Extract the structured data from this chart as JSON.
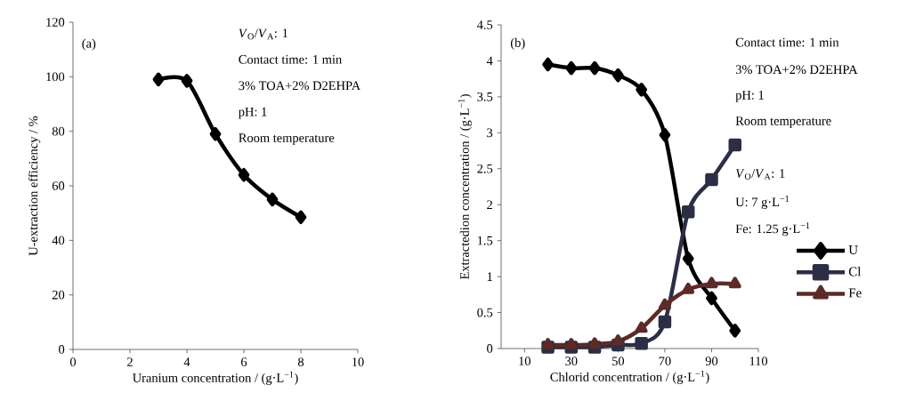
{
  "chart_data": [
    {
      "type": "line",
      "xlabel": "Uranium concentration / (g·L$^{−1}$)",
      "ylabel": "U-extraction efficiency / %",
      "x": [
        3,
        4,
        5,
        6,
        7,
        8
      ],
      "values": [
        99,
        98.5,
        79,
        64,
        55,
        48.5
      ],
      "color": "#000000",
      "marker": "diamond",
      "line_style": "solid",
      "xlim": [
        0,
        10
      ],
      "ylim": [
        0,
        120
      ],
      "xticks": [
        0,
        2,
        4,
        6,
        8,
        10
      ],
      "yticks": [
        0,
        20,
        40,
        60,
        80,
        100,
        120
      ],
      "annotations": [
        "(a)",
        "*V*$_{O}$/*V*$_{A}$: 1",
        "Contact time: 1 min",
        "3% TOA+2% D2EHPA",
        "pH: 1",
        "Room temperature"
      ]
    },
    {
      "type": "line",
      "xlabel": "Chlorid concentration / (g·L$^{−1}$)",
      "ylabel": "Extractedion concentration / (g·L$^{−1}$)",
      "x": [
        20,
        30,
        40,
        50,
        60,
        70,
        80,
        90,
        100
      ],
      "series": [
        {
          "name": "U",
          "color": "#000000",
          "marker": "diamond",
          "values": [
            3.95,
            3.9,
            3.9,
            3.8,
            3.6,
            2.97,
            1.25,
            0.7,
            0.25
          ]
        },
        {
          "name": "Cl",
          "color": "#2b2e45",
          "marker": "square",
          "values": [
            0.02,
            0.02,
            0.02,
            0.05,
            0.07,
            0.37,
            1.9,
            2.35,
            2.83
          ]
        },
        {
          "name": "Fe",
          "color": "#5c2a27",
          "marker": "triangle",
          "values": [
            0.05,
            0.05,
            0.06,
            0.1,
            0.28,
            0.6,
            0.82,
            0.9,
            0.9
          ]
        }
      ],
      "line_style": "solid",
      "legend": "right",
      "xlim": [
        0,
        110
      ],
      "ylim": [
        0,
        4.5
      ],
      "xticks": [
        10,
        30,
        50,
        70,
        90,
        110
      ],
      "yticks": [
        0,
        0.5,
        1,
        1.5,
        2,
        2.5,
        3,
        3.5,
        4,
        4.5
      ],
      "annotations": [
        "(b)",
        "Contact time: 1 min",
        "3% TOA+2% D2EHPA",
        "pH: 1",
        "Room temperature",
        "*V*$_{O}$/*V*$_{A}$: 1",
        "U: 7 g·L$^{−1}$",
        "Fe: 1.25 g·L$^{−1}$"
      ]
    }
  ]
}
